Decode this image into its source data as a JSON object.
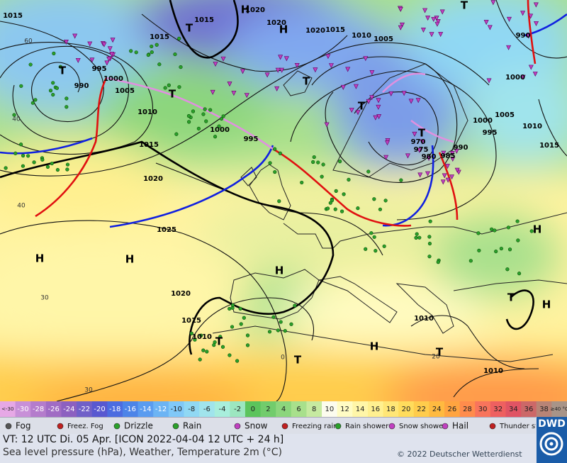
{
  "map": {
    "pressure_labels": [
      "1015",
      "1015",
      "1020",
      "1020",
      "1020",
      "1015",
      "1010",
      "1005",
      "1015",
      "995",
      "1000",
      "990",
      "1005",
      "1010",
      "1000",
      "995",
      "1015",
      "1020",
      "1025",
      "1020",
      "1015",
      "1010",
      "1000",
      "1005",
      "1010",
      "1000",
      "995",
      "990",
      "985",
      "980",
      "975",
      "970",
      "1015",
      "990",
      "1010",
      "1010"
    ],
    "temperature_labels": [
      "30",
      "30",
      "20",
      "0",
      "40",
      "40",
      "60"
    ],
    "highs": [
      "H",
      "H",
      "H",
      "H",
      "H",
      "H",
      "H",
      "H"
    ],
    "lows": [
      "T",
      "T",
      "T",
      "T",
      "T",
      "T",
      "T",
      "T",
      "T",
      "T",
      "T"
    ]
  },
  "scale": {
    "cells": [
      {
        "label": "<-30",
        "color": "#e6a8e6"
      },
      {
        "label": "-30",
        "color": "#c890d8"
      },
      {
        "label": "-28",
        "color": "#b47ccc"
      },
      {
        "label": "-26",
        "color": "#a06cc4"
      },
      {
        "label": "-24",
        "color": "#8c60c0"
      },
      {
        "label": "-22",
        "color": "#7060c8"
      },
      {
        "label": "-20",
        "color": "#5858d0"
      },
      {
        "label": "-18",
        "color": "#4c6ce0"
      },
      {
        "label": "-16",
        "color": "#4c84e8"
      },
      {
        "label": "-14",
        "color": "#5a9cf0"
      },
      {
        "label": "-12",
        "color": "#6cb4f4"
      },
      {
        "label": "-10",
        "color": "#80c8f8"
      },
      {
        "label": "-8",
        "color": "#90d8f4"
      },
      {
        "label": "-6",
        "color": "#a0e4ec"
      },
      {
        "label": "-4",
        "color": "#a8eedc"
      },
      {
        "label": "-2",
        "color": "#9ce6c0"
      },
      {
        "label": "0",
        "color": "#5cc45c"
      },
      {
        "label": "2",
        "color": "#72cc6c"
      },
      {
        "label": "4",
        "color": "#8cd67c"
      },
      {
        "label": "6",
        "color": "#a8e08c"
      },
      {
        "label": "8",
        "color": "#c6eaa0"
      },
      {
        "label": "10",
        "color": "#fcfcee"
      },
      {
        "label": "12",
        "color": "#fffcc4"
      },
      {
        "label": "14",
        "color": "#fff6a8"
      },
      {
        "label": "16",
        "color": "#fff090"
      },
      {
        "label": "18",
        "color": "#ffe676"
      },
      {
        "label": "20",
        "color": "#ffdc5c"
      },
      {
        "label": "22",
        "color": "#ffcc4c"
      },
      {
        "label": "24",
        "color": "#ffba40"
      },
      {
        "label": "26",
        "color": "#ffa440"
      },
      {
        "label": "28",
        "color": "#ff8c4c"
      },
      {
        "label": "30",
        "color": "#f8745c"
      },
      {
        "label": "32",
        "color": "#ee6060"
      },
      {
        "label": "34",
        "color": "#e05464"
      },
      {
        "label": "36",
        "color": "#cc6868"
      },
      {
        "label": "38",
        "color": "#b88476"
      },
      {
        "label": "≥40 °C",
        "color": "#a89488"
      }
    ]
  },
  "legend": [
    "Fog",
    "Freez. Fog",
    "Drizzle",
    "Rain",
    "Snow",
    "Freezing rain",
    "Rain shower",
    "Snow shower",
    "Hail",
    "Thunder storm"
  ],
  "info": {
    "line1": "VT: 12 UTC Di.  05 Apr. [ICON 2022-04-04  12 UTC + 24 h]",
    "line2": "Sea level pressure (hPa), Weather, Temperature 2m (°C)",
    "copyright": "© 2022 Deutscher Wetterdienst",
    "logo": "DWD"
  }
}
